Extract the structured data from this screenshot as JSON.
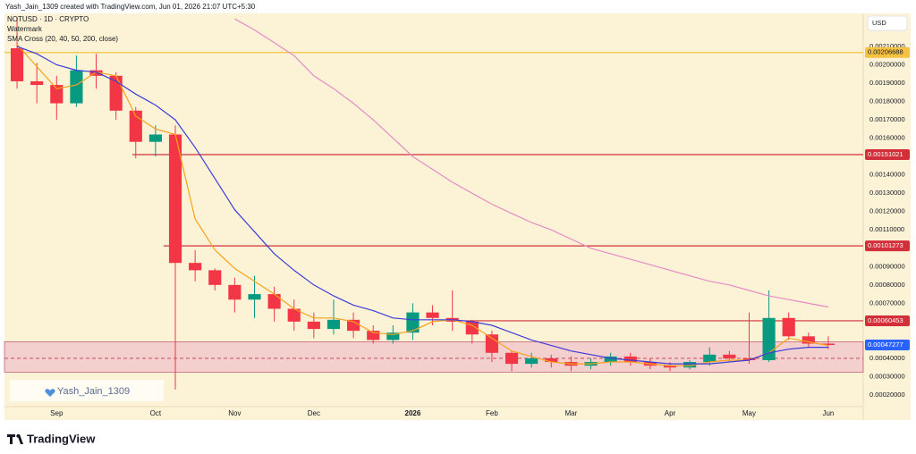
{
  "chart_data": {
    "type": "candlestick",
    "credit": "Yash_Jain_1309 created with TradingView.com, Jun 01, 2026 21:07 UTC+5:30",
    "title": "NOTUSD · 1D · CRYPTO",
    "indicators": [
      "Watermark",
      "SMA Cross (20, 40, 50, 200, close)"
    ],
    "currency": "USD",
    "watermark": "Yash_Jain_1309",
    "brand": "TradingView",
    "categories": [
      null,
      null,
      "Sep",
      null,
      null,
      null,
      null,
      "Oct",
      null,
      null,
      null,
      "Nov",
      null,
      null,
      null,
      "Dec",
      null,
      null,
      null,
      null,
      "2026",
      null,
      null,
      null,
      "Feb",
      null,
      null,
      null,
      "Mar",
      null,
      null,
      null,
      null,
      "Apr",
      null,
      null,
      null,
      "May",
      null,
      null,
      null,
      "Jun"
    ],
    "open": [
      0.00209,
      0.00191,
      0.00189,
      0.00179,
      0.00197,
      0.00194,
      0.00175,
      0.00158,
      0.00162,
      0.00092,
      0.00088,
      0.0008,
      0.00072,
      0.00075,
      0.00067,
      0.0006,
      0.00056,
      0.00061,
      0.00055,
      0.0005,
      0.00054,
      0.00065,
      0.00062,
      0.0006,
      0.00053,
      0.00043,
      0.00037,
      0.0004,
      0.00038,
      0.00036,
      0.00038,
      0.00041,
      0.00038,
      0.00036,
      0.00035,
      0.00038,
      0.00042,
      0.0004,
      0.00039,
      0.00062,
      0.00052,
      0.00048
    ],
    "high": [
      0.00226,
      0.00201,
      0.00194,
      0.00205,
      0.00206,
      0.00196,
      0.00177,
      0.00167,
      0.00167,
      0.00099,
      0.00089,
      0.00084,
      0.00085,
      0.00079,
      0.00072,
      0.00065,
      0.00072,
      0.00065,
      0.00058,
      0.00058,
      0.0007,
      0.00069,
      0.00077,
      0.00061,
      0.00055,
      0.00044,
      0.00043,
      0.00042,
      0.00041,
      0.0004,
      0.00043,
      0.00043,
      0.0004,
      0.00038,
      0.00039,
      0.00046,
      0.00044,
      0.00065,
      0.00077,
      0.00065,
      0.00054,
      0.00052
    ],
    "low": [
      0.00187,
      0.00179,
      0.0017,
      0.00177,
      0.00187,
      0.0017,
      0.00149,
      0.0015,
      0.00023,
      0.00082,
      0.00077,
      0.00065,
      0.00062,
      0.0006,
      0.00055,
      0.00051,
      0.00053,
      0.00051,
      0.00048,
      0.00048,
      0.0005,
      0.00058,
      0.00055,
      0.00048,
      0.00038,
      0.00033,
      0.00035,
      0.00035,
      0.00033,
      0.00034,
      0.00036,
      0.00036,
      0.00034,
      0.00033,
      0.00034,
      0.00036,
      0.00038,
      0.00037,
      0.00038,
      0.0005,
      0.00046,
      0.00045
    ],
    "close": [
      0.00191,
      0.00189,
      0.00179,
      0.00197,
      0.00194,
      0.00175,
      0.00158,
      0.00162,
      0.00092,
      0.00088,
      0.0008,
      0.00072,
      0.00075,
      0.00067,
      0.0006,
      0.00056,
      0.00061,
      0.00055,
      0.0005,
      0.00054,
      0.00065,
      0.00062,
      0.0006,
      0.00053,
      0.00043,
      0.00037,
      0.0004,
      0.00038,
      0.00036,
      0.00038,
      0.00041,
      0.00038,
      0.00036,
      0.00035,
      0.00038,
      0.00042,
      0.0004,
      0.00039,
      0.00062,
      0.00052,
      0.00048,
      0.00047277
    ],
    "up_color": "#089981",
    "down_color": "#f23645",
    "moving_averages": [
      {
        "color": "#f7a21b",
        "values": [
          0.00211,
          0.00199,
          0.00187,
          0.00189,
          0.00196,
          0.00194,
          0.00172,
          0.00165,
          0.00162,
          0.00116,
          0.00099,
          0.00089,
          0.00082,
          0.00075,
          0.00067,
          0.00062,
          0.00062,
          0.0006,
          0.00054,
          0.00053,
          0.00055,
          0.0006,
          0.00061,
          0.00058,
          0.00051,
          0.00044,
          0.00041,
          0.00038,
          0.00037,
          0.00037,
          0.00038,
          0.00038,
          0.00037,
          0.00036,
          0.00036,
          0.00038,
          0.00039,
          0.00039,
          0.00043,
          0.00051,
          0.00049,
          0.00047
        ]
      },
      {
        "color": "#3d3dd9",
        "values": [
          0.0021,
          0.00206,
          0.002,
          0.00197,
          0.00196,
          0.00191,
          0.00184,
          0.00178,
          0.0017,
          0.00155,
          0.00138,
          0.00121,
          0.00109,
          0.00097,
          0.00088,
          0.0008,
          0.00074,
          0.00069,
          0.00066,
          0.00062,
          0.00061,
          0.00061,
          0.00061,
          0.0006,
          0.00058,
          0.00054,
          0.0005,
          0.00047,
          0.00044,
          0.00042,
          0.0004,
          0.00039,
          0.00038,
          0.00037,
          0.00037,
          0.00037,
          0.00038,
          0.00039,
          0.00043,
          0.00045,
          0.00046,
          0.00046
        ]
      },
      {
        "color": "#e58bc4",
        "values": [
          null,
          null,
          null,
          null,
          null,
          null,
          null,
          null,
          null,
          null,
          null,
          0.00225,
          0.00219,
          0.00212,
          0.00205,
          0.00194,
          0.00187,
          0.00179,
          0.0017,
          0.0016,
          0.0015,
          0.00143,
          0.00136,
          0.0013,
          0.00124,
          0.00119,
          0.00114,
          0.0011,
          0.00105,
          0.001,
          0.00097,
          0.00094,
          0.00091,
          0.00088,
          0.00085,
          0.00082,
          0.0008,
          0.00077,
          0.00074,
          0.00072,
          0.0007,
          0.00068
        ]
      }
    ],
    "levels": [
      {
        "value": 0.00206688,
        "color": "#f5c242",
        "text_color": "#131722"
      },
      {
        "value": 0.00151021,
        "color": "#d32f3a",
        "text_color": "#ffffff"
      },
      {
        "value": 0.00101273,
        "color": "#d32f3a",
        "text_color": "#ffffff"
      },
      {
        "value": 0.00060453,
        "color": "#d32f3a",
        "text_color": "#ffffff"
      }
    ],
    "last_price": 0.00047277,
    "last_price_color": "#2962ff",
    "zone": [
      0.00049,
      0.000325
    ],
    "zone_line": 0.0004,
    "zone_color": "#e9a3c3",
    "ylim": [
      6.36e-05,
      0.00228
    ],
    "yticks": [
      {
        "value": 0.0021,
        "label": "0.00210000"
      },
      {
        "value": 0.002,
        "label": "0.00200000"
      },
      {
        "value": 0.0019,
        "label": "0.00190000"
      },
      {
        "value": 0.0018,
        "label": "0.00180000"
      },
      {
        "value": 0.0017,
        "label": "0.00170000"
      },
      {
        "value": 0.0016,
        "label": "0.00160000"
      },
      {
        "value": 0.0014,
        "label": "0.00140000"
      },
      {
        "value": 0.0013,
        "label": "0.00130000"
      },
      {
        "value": 0.0012,
        "label": "0.00120000"
      },
      {
        "value": 0.0011,
        "label": "0.00110000"
      },
      {
        "value": 0.0009,
        "label": "0.00090000"
      },
      {
        "value": 0.0008,
        "label": "0.00080000"
      },
      {
        "value": 0.0007,
        "label": "0.00070000"
      },
      {
        "value": 0.0004,
        "label": "0.00040000"
      },
      {
        "value": 0.0003,
        "label": "0.00030000"
      },
      {
        "value": 0.0002,
        "label": "0.00020000"
      }
    ],
    "grid": false
  }
}
